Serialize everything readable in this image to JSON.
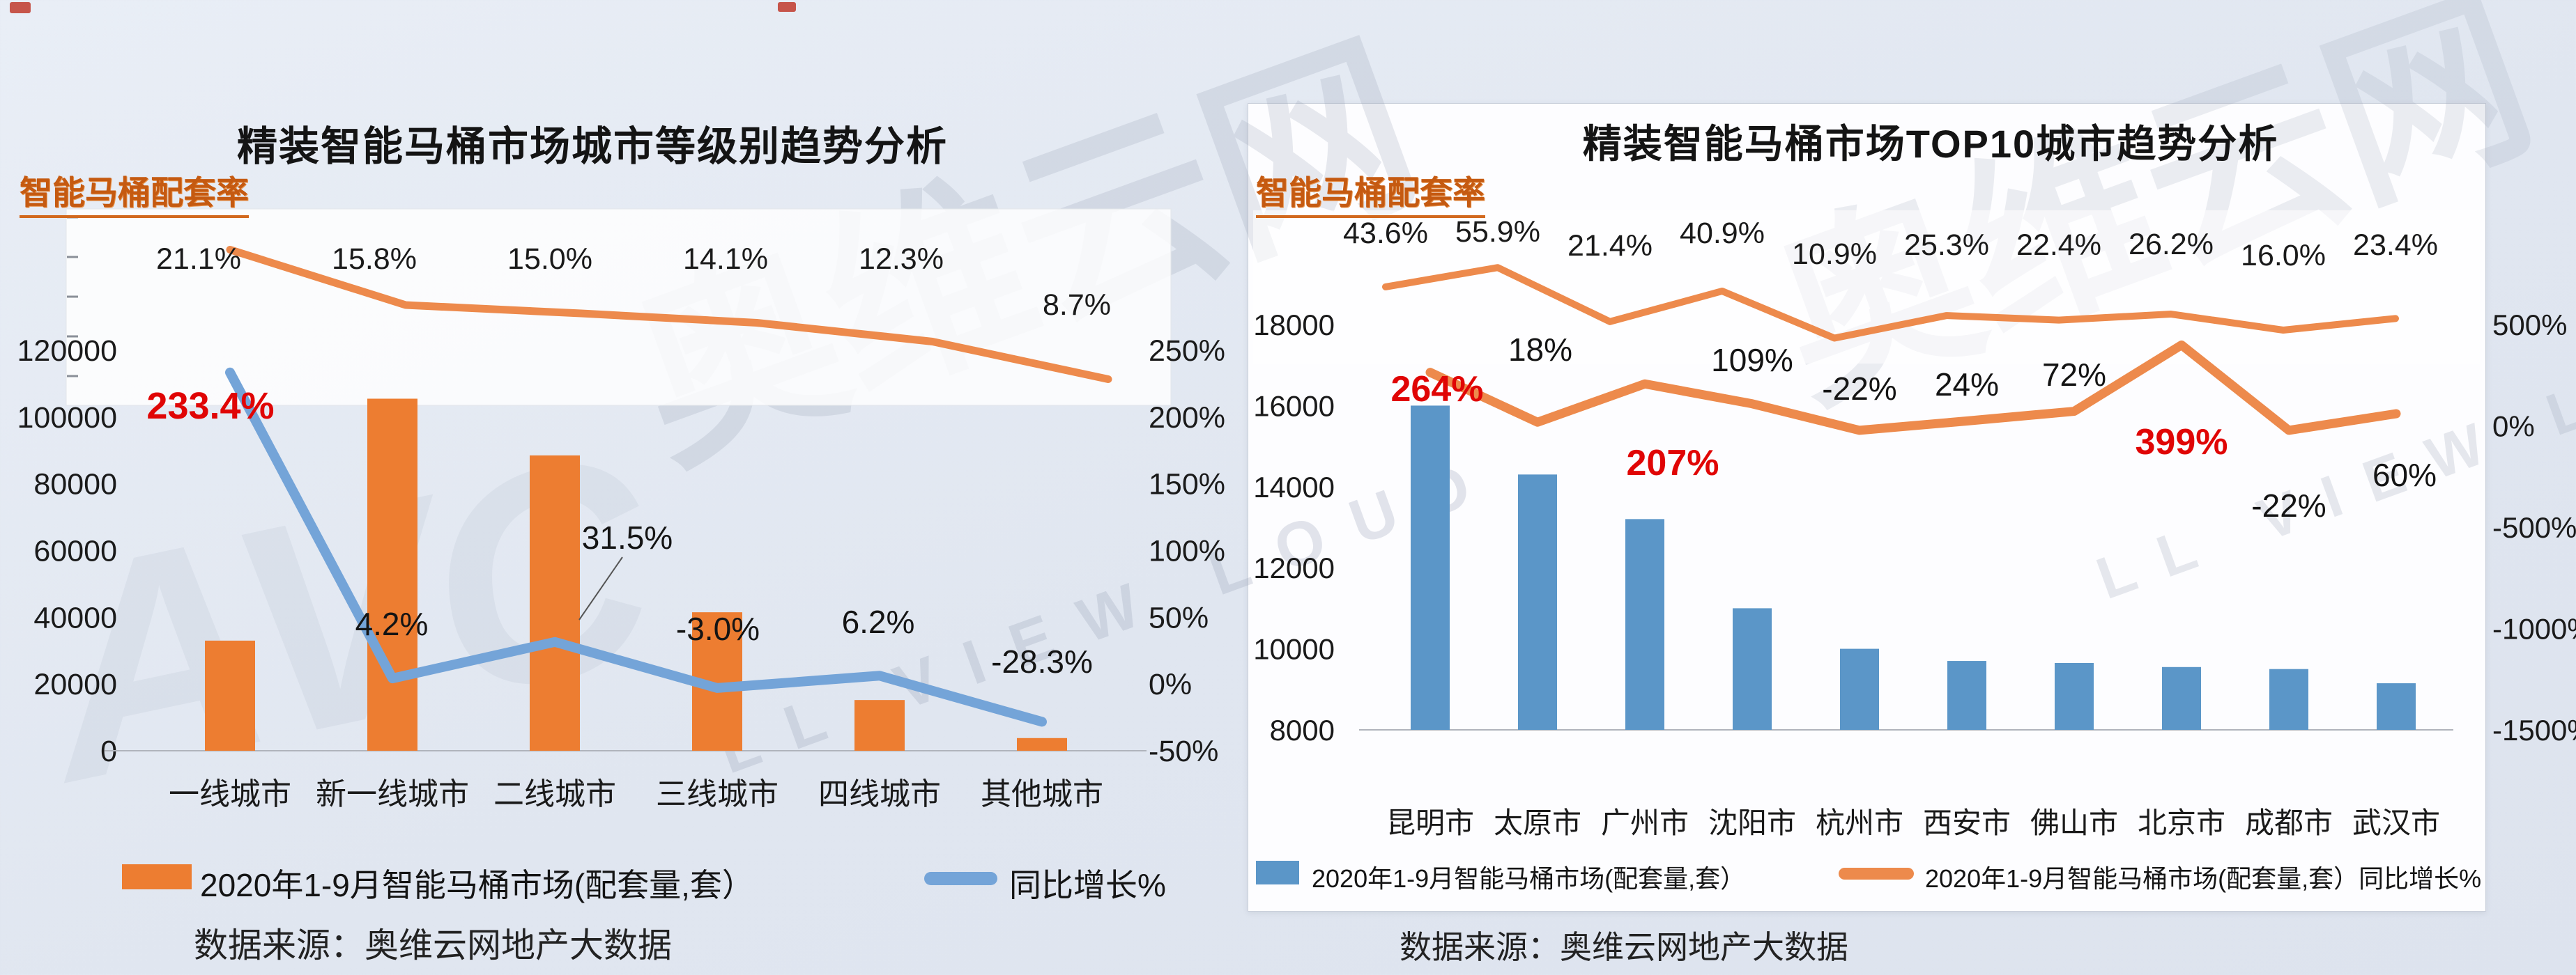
{
  "page": {
    "watermarks": {
      "brand_left": "奥维云网",
      "latin_left": "LL VIEW LOUD",
      "brand_right": "奥维云网",
      "latin_right": "LL VIEW LOUD",
      "logo": "AVC"
    }
  },
  "chart_data": [
    {
      "type": "bar+line",
      "title": "精装智能马桶市场城市等级别趋势分析",
      "rate_label": "智能马桶配套率",
      "categories": [
        "一线城市",
        "新一线城市",
        "二线城市",
        "三线城市",
        "四线城市",
        "其他城市"
      ],
      "mini_line": {
        "name": "智能马桶配套率",
        "values": [
          21.1,
          15.8,
          15.0,
          14.1,
          12.3,
          8.7
        ],
        "labels": [
          "21.1%",
          "15.8%",
          "15.0%",
          "14.1%",
          "12.3%",
          "8.7%"
        ],
        "color": "#ED8A4C"
      },
      "series": [
        {
          "name": "2020年1-9月智能马桶市场(配套量,套）",
          "type": "bar",
          "color": "#ED7D31",
          "values": [
            33000,
            105500,
            88500,
            41500,
            15200,
            3800
          ]
        },
        {
          "name": "同比增长%",
          "type": "line",
          "color": "#74A4D8",
          "values": [
            233.4,
            4.2,
            31.5,
            -3.0,
            6.2,
            -28.3
          ],
          "labels": [
            "233.4%",
            "4.2%",
            "31.5%",
            "-3.0%",
            "6.2%",
            "-28.3%"
          ],
          "red_label_indexes": [
            0
          ]
        }
      ],
      "left_axis": {
        "min": 0,
        "max": 120000,
        "ticks": [
          "120000",
          "100000",
          "80000",
          "60000",
          "40000",
          "20000",
          "0"
        ]
      },
      "right_axis": {
        "min": -50,
        "max": 250,
        "ticks": [
          "250%",
          "200%",
          "150%",
          "100%",
          "50%",
          "0%",
          "-50%"
        ]
      },
      "legend": [
        {
          "swatch": "rect",
          "color": "#ED7D31",
          "label": "2020年1-9月智能马桶市场(配套量,套）"
        },
        {
          "swatch": "line",
          "color": "#74A4D8",
          "label": "同比增长%"
        }
      ],
      "legend_position": "bottom",
      "grid": false,
      "source": "数据来源：奥维云网地产大数据"
    },
    {
      "type": "bar+line",
      "title": "精装智能马桶市场TOP10城市趋势分析",
      "rate_label": "智能马桶配套率",
      "categories": [
        "昆明市",
        "太原市",
        "广州市",
        "沈阳市",
        "杭州市",
        "西安市",
        "佛山市",
        "北京市",
        "成都市",
        "武汉市"
      ],
      "mini_line": {
        "name": "智能马桶配套率",
        "values": [
          43.6,
          55.9,
          21.4,
          40.9,
          10.9,
          25.3,
          22.4,
          26.2,
          16.0,
          23.4
        ],
        "labels": [
          "43.6%",
          "55.9%",
          "21.4%",
          "40.9%",
          "10.9%",
          "25.3%",
          "22.4%",
          "26.2%",
          "16.0%",
          "23.4%"
        ],
        "color": "#ED8A4C"
      },
      "series": [
        {
          "name": "2020年1-9月智能马桶市场(配套量,套）",
          "type": "bar",
          "color": "#5B96C8",
          "values": [
            16000,
            14300,
            13200,
            11000,
            10000,
            9700,
            9650,
            9550,
            9500,
            9150
          ]
        },
        {
          "name": "2020年1-9月智能马桶市场(配套量,套）同比增长%",
          "type": "line",
          "color": "#ED8A4C",
          "values": [
            264,
            18,
            207,
            109,
            -22,
            24,
            72,
            399,
            -22,
            60
          ],
          "labels": [
            "264%",
            "18%",
            "207%",
            "109%",
            "-22%",
            "24%",
            "72%",
            "399%",
            "-22%",
            "60%"
          ],
          "red_label_indexes": [
            0,
            2,
            7
          ]
        }
      ],
      "left_axis": {
        "min": 8000,
        "max": 18000,
        "ticks": [
          "18000",
          "16000",
          "14000",
          "12000",
          "10000",
          "8000"
        ]
      },
      "right_axis": {
        "min": -1500,
        "max": 500,
        "ticks": [
          "500%",
          "0%",
          "-500%",
          "-1000%",
          "-1500%"
        ]
      },
      "legend": [
        {
          "swatch": "rect",
          "color": "#5B96C8",
          "label": "2020年1-9月智能马桶市场(配套量,套）"
        },
        {
          "swatch": "line",
          "color": "#ED8A4C",
          "label": "2020年1-9月智能马桶市场(配套量,套）同比增长%"
        }
      ],
      "legend_position": "bottom",
      "grid": false,
      "source": "数据来源：奥维云网地产大数据"
    }
  ]
}
